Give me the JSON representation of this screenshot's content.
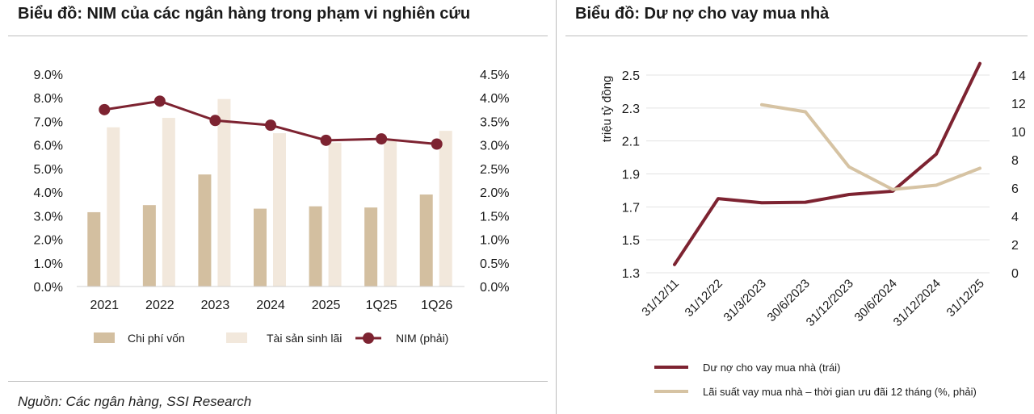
{
  "left_title": "Biểu đồ: NIM của các ngân hàng trong phạm vi nghiên cứu",
  "right_title": "Biểu đồ: Dư nợ cho vay mua nhà",
  "source": "Nguồn: Các ngân hàng, SSI Research",
  "colors": {
    "cost": "#d3bfa0",
    "asset": "#f2e8dc",
    "nim": "#7d2331",
    "loan": "#7d2331",
    "rate": "#d6c3a3"
  },
  "chart_data": [
    {
      "type": "bar",
      "title": "Biểu đồ: NIM của các ngân hàng trong phạm vi nghiên cứu",
      "categories": [
        "2021",
        "2022",
        "2023",
        "2024",
        "2025",
        "1Q25",
        "1Q26"
      ],
      "left_axis": {
        "ylim": [
          0,
          9
        ],
        "ticks": [
          "9.0%",
          "8.0%",
          "7.0%",
          "6.0%",
          "5.0%",
          "4.0%",
          "3.0%",
          "2.0%",
          "1.0%",
          "0.0%"
        ]
      },
      "right_axis": {
        "ylim": [
          0,
          4.5
        ],
        "ticks": [
          "4.5%",
          "4.0%",
          "3.5%",
          "3.0%",
          "2.5%",
          "2.0%",
          "1.5%",
          "1.0%",
          "0.5%",
          "0.0%"
        ]
      },
      "series": [
        {
          "name": "Chi phí vốn",
          "type": "bar",
          "axis": "left",
          "values": [
            3.15,
            3.45,
            4.75,
            3.3,
            3.4,
            3.35,
            3.9
          ]
        },
        {
          "name": "Tài sản sinh lãi",
          "type": "bar",
          "axis": "left",
          "values": [
            6.75,
            7.15,
            7.95,
            6.5,
            6.1,
            6.2,
            6.6
          ]
        },
        {
          "name": "NIM (phải)",
          "type": "line",
          "axis": "right",
          "values": [
            3.75,
            3.93,
            3.52,
            3.42,
            3.1,
            3.13,
            3.02
          ]
        }
      ],
      "legend": {
        "position": "bottom",
        "items": [
          "Chi phí vốn",
          "Tài sản sinh lãi",
          "NIM (phải)"
        ]
      },
      "grid": false
    },
    {
      "type": "line",
      "title": "Biểu đồ: Dư nợ cho vay mua nhà",
      "categories": [
        "31/12/11",
        "31/12/22",
        "31/3/2023",
        "30/6/2023",
        "31/12/2023",
        "30/6/2024",
        "31/12/2024",
        "31/12/25"
      ],
      "left_axis": {
        "label": "triệu tỷ đồng",
        "ylim": [
          1.3,
          2.5
        ],
        "ticks": [
          "2.5",
          "2.3",
          "2.1",
          "1.9",
          "1.7",
          "1.5",
          "1.3"
        ]
      },
      "right_axis": {
        "ylim": [
          0,
          14
        ],
        "ticks": [
          "14",
          "12",
          "10",
          "8",
          "6",
          "4",
          "2",
          "0"
        ]
      },
      "series": [
        {
          "name": "Dư nợ cho vay mua nhà (trái)",
          "axis": "left",
          "values": [
            1.35,
            1.75,
            1.725,
            1.728,
            1.775,
            1.795,
            2.02,
            2.57
          ]
        },
        {
          "name": "Lãi suất vay mua nhà – thời gian ưu đãi 12 tháng (%, phải)",
          "axis": "right",
          "values": [
            null,
            null,
            11.9,
            11.4,
            7.5,
            5.9,
            6.2,
            7.4
          ]
        }
      ],
      "legend": {
        "position": "bottom",
        "items": [
          "Dư nợ cho vay mua nhà (trái)",
          "Lãi suất vay mua nhà – thời gian ưu đãi 12 tháng (%, phải)"
        ]
      },
      "grid": true
    }
  ]
}
